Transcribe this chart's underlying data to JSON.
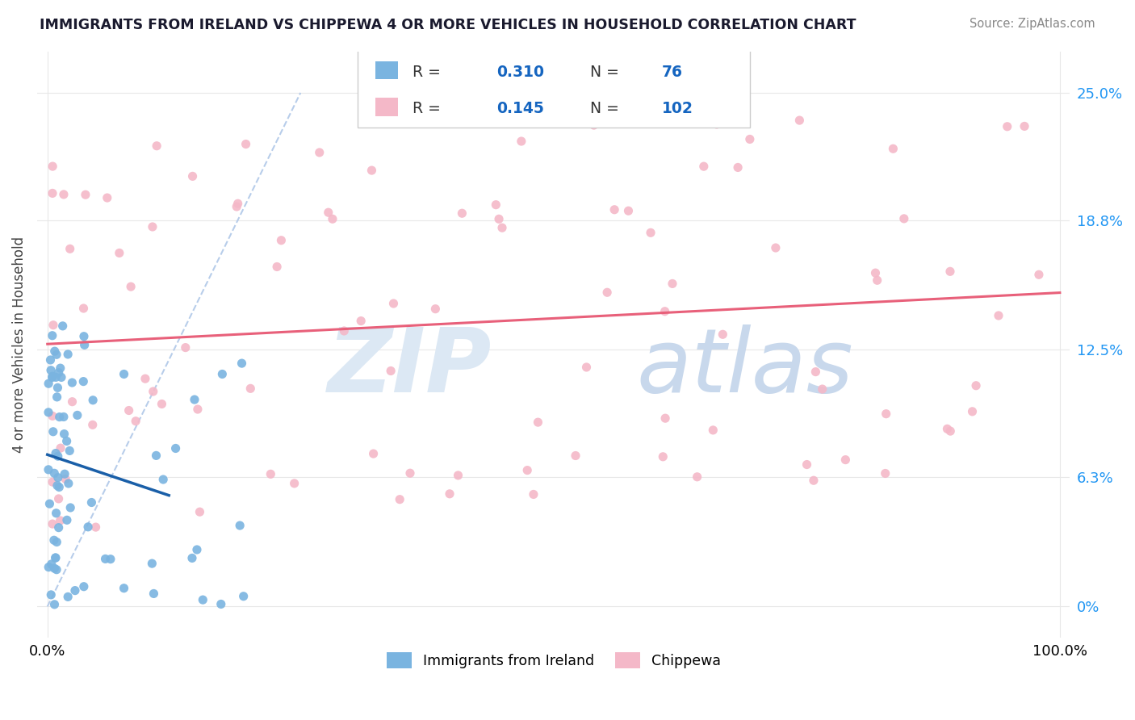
{
  "title": "IMMIGRANTS FROM IRELAND VS CHIPPEWA 4 OR MORE VEHICLES IN HOUSEHOLD CORRELATION CHART",
  "source_text": "Source: ZipAtlas.com",
  "ylabel": "4 or more Vehicles in Household",
  "xlim": [
    0.0,
    100.0
  ],
  "ylim": [
    0.0,
    25.0
  ],
  "yticks": [
    0.0,
    6.3,
    12.5,
    18.8,
    25.0
  ],
  "ytick_labels": [
    "0%",
    "6.3%",
    "12.5%",
    "18.8%",
    "25.0%"
  ],
  "xticks": [
    0.0,
    100.0
  ],
  "xtick_labels": [
    "0.0%",
    "100.0%"
  ],
  "blue_R": 0.31,
  "blue_N": 76,
  "pink_R": 0.145,
  "pink_N": 102,
  "blue_scatter_color": "#7ab4e0",
  "pink_scatter_color": "#f4b8c8",
  "blue_line_color": "#1a5fa8",
  "pink_line_color": "#e8607a",
  "legend_label_blue": "Immigrants from Ireland",
  "legend_label_pink": "Chippewa",
  "grid_color": "#e8e8e8",
  "diag_line_color": "#b0c8e8",
  "title_color": "#1a1a2e",
  "source_color": "#888888",
  "watermark_color1": "#dce8f4",
  "watermark_color2": "#c8d8ec"
}
